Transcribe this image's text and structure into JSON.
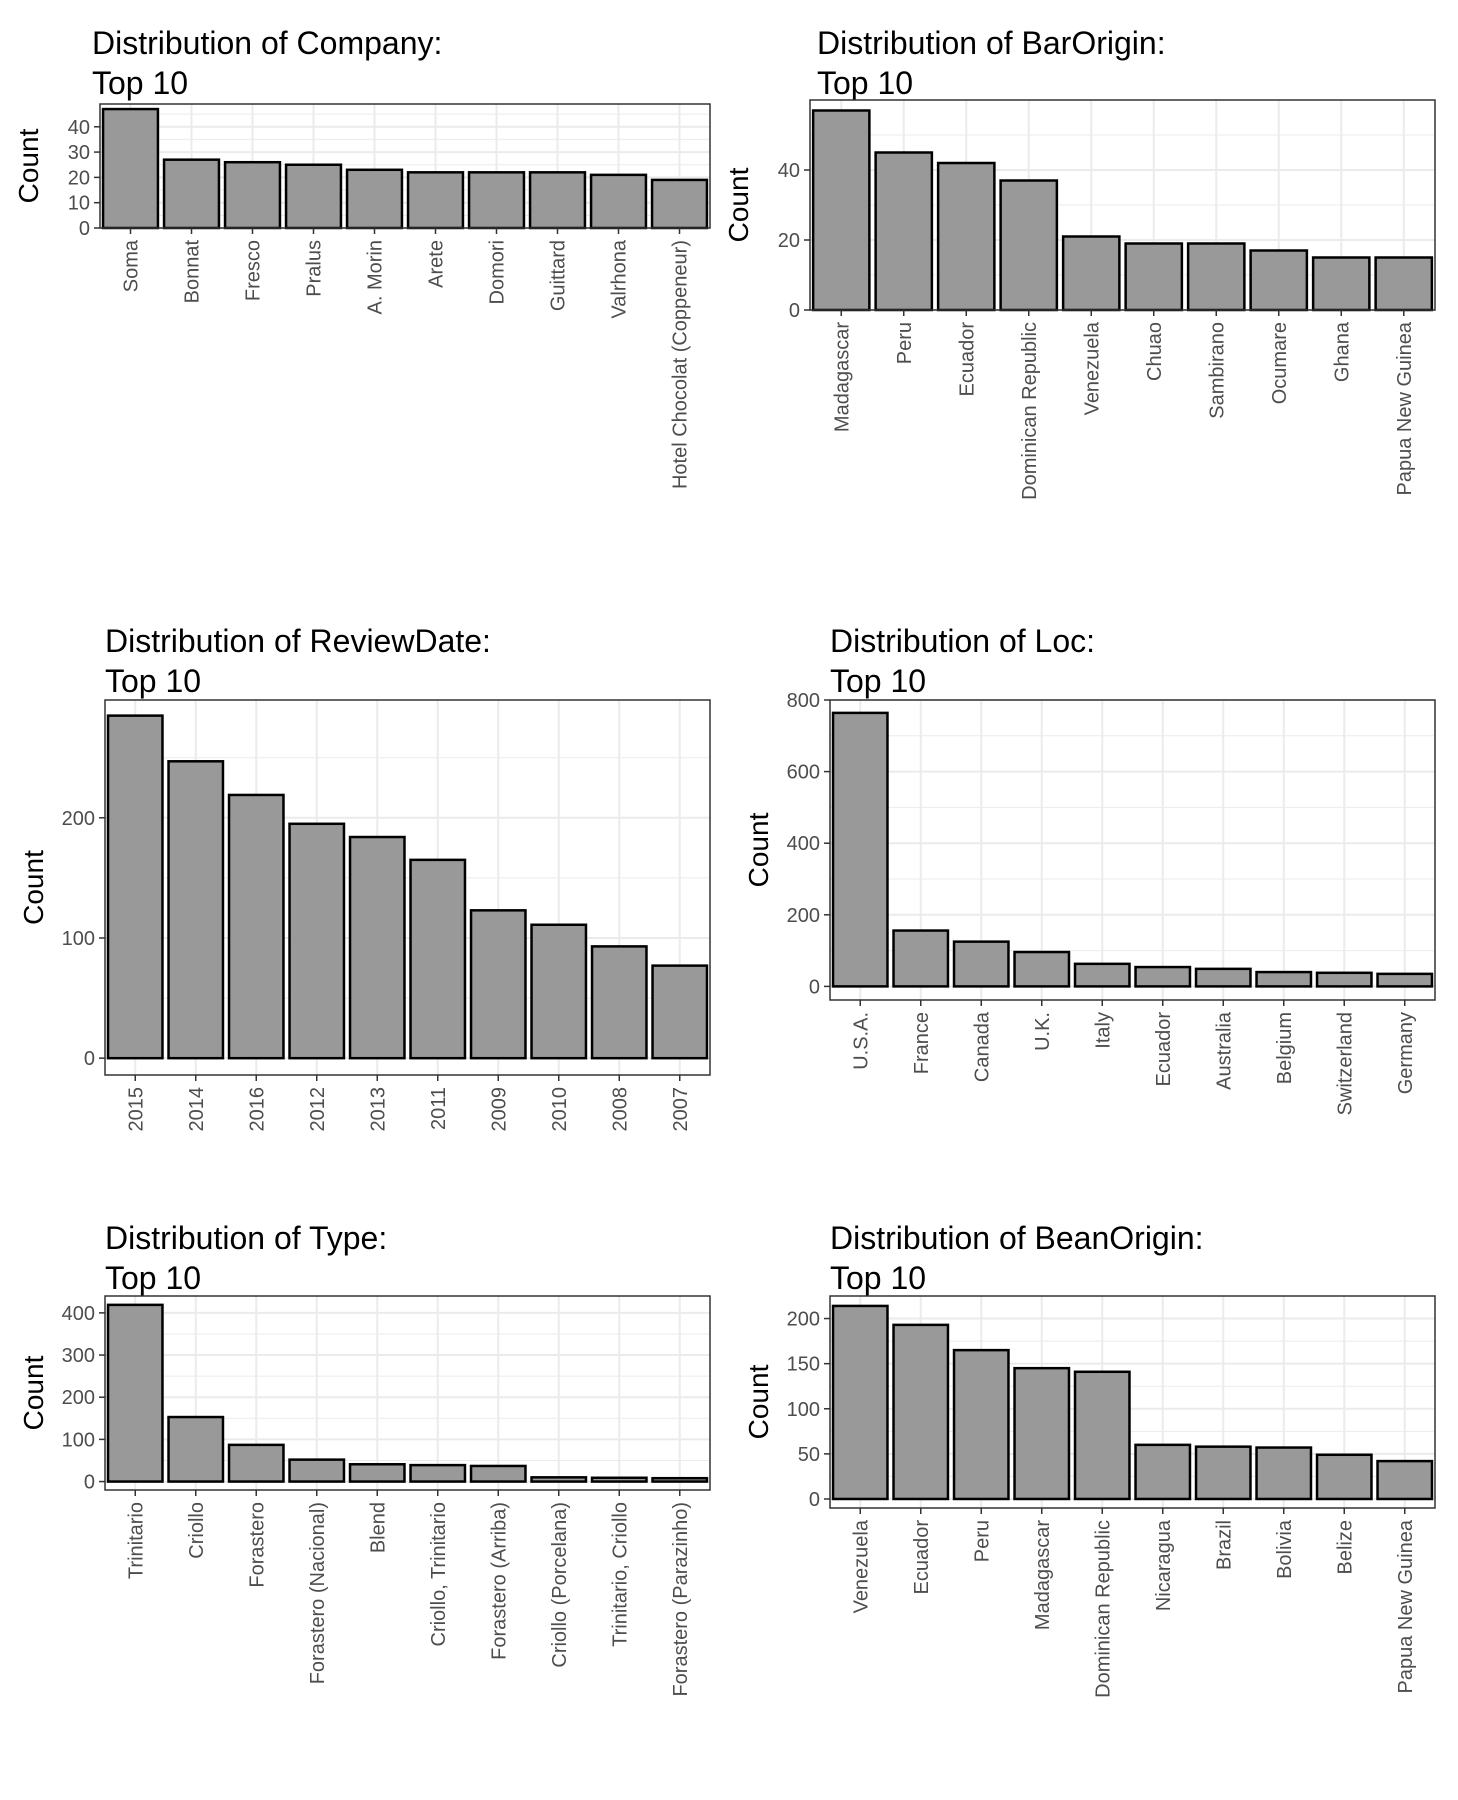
{
  "chart_data": [
    {
      "type": "bar",
      "title_lines": [
        "Distribution of Company:",
        "Top 10"
      ],
      "ylabel": "Count",
      "categories": [
        "Soma",
        "Bonnat",
        "Fresco",
        "Pralus",
        "A. Morin",
        "Arete",
        "Domori",
        "Guittard",
        "Valrhona",
        "Hotel Chocolat (Coppeneur)"
      ],
      "values": [
        47,
        27,
        26,
        25,
        23,
        22,
        22,
        22,
        21,
        19
      ],
      "ylim": [
        0,
        49
      ],
      "yticks": [
        0,
        10,
        20,
        30,
        40
      ],
      "grid": true,
      "bar_fill": "#999999",
      "bar_stroke": "#000000"
    },
    {
      "type": "bar",
      "title_lines": [
        "Distribution of BarOrigin:",
        "Top 10"
      ],
      "ylabel": "Count",
      "categories": [
        "Madagascar",
        "Peru",
        "Ecuador",
        "Dominican Republic",
        "Venezuela",
        "Chuao",
        "Sambirano",
        "Ocumare",
        "Ghana",
        "Papua New Guinea"
      ],
      "values": [
        57,
        45,
        42,
        37,
        21,
        19,
        19,
        17,
        15,
        15
      ],
      "ylim": [
        0,
        60
      ],
      "yticks": [
        0,
        20,
        40
      ],
      "grid": true,
      "bar_fill": "#999999",
      "bar_stroke": "#000000"
    },
    {
      "type": "bar",
      "title_lines": [
        "Distribution of ReviewDate:",
        "Top 10"
      ],
      "ylabel": "Count",
      "categories": [
        "2015",
        "2014",
        "2016",
        "2012",
        "2013",
        "2011",
        "2009",
        "2010",
        "2008",
        "2007"
      ],
      "values": [
        285,
        247,
        219,
        195,
        184,
        165,
        123,
        111,
        93,
        77
      ],
      "ylim": [
        -14,
        298
      ],
      "yticks": [
        0,
        100,
        200
      ],
      "grid": true,
      "bar_fill": "#999999",
      "bar_stroke": "#000000"
    },
    {
      "type": "bar",
      "title_lines": [
        "Distribution of Loc:",
        "Top 10"
      ],
      "ylabel": "Count",
      "categories": [
        "U.S.A.",
        "France",
        "Canada",
        "U.K.",
        "Italy",
        "Ecuador",
        "Australia",
        "Belgium",
        "Switzerland",
        "Germany"
      ],
      "values": [
        764,
        156,
        125,
        96,
        63,
        54,
        49,
        40,
        38,
        35
      ],
      "ylim": [
        -38,
        800
      ],
      "yticks": [
        0,
        200,
        400,
        600,
        800
      ],
      "grid": true,
      "bar_fill": "#999999",
      "bar_stroke": "#000000"
    },
    {
      "type": "bar",
      "title_lines": [
        "Distribution of Type:",
        "Top 10"
      ],
      "ylabel": "Count",
      "categories": [
        "Trinitario",
        "Criollo",
        "Forastero",
        "Forastero (Nacional)",
        "Blend",
        "Criollo, Trinitario",
        "Forastero (Arriba)",
        "Criollo (Porcelana)",
        "Trinitario, Criollo",
        "Forastero (Parazinho)"
      ],
      "values": [
        419,
        153,
        87,
        52,
        41,
        39,
        37,
        10,
        9,
        8
      ],
      "ylim": [
        -20,
        440
      ],
      "yticks": [
        0,
        100,
        200,
        300,
        400
      ],
      "grid": true,
      "bar_fill": "#999999",
      "bar_stroke": "#000000"
    },
    {
      "type": "bar",
      "title_lines": [
        "Distribution of BeanOrigin:",
        "Top 10"
      ],
      "ylabel": "Count",
      "categories": [
        "Venezuela",
        "Ecuador",
        "Peru",
        "Madagascar",
        "Dominican Republic",
        "Nicaragua",
        "Brazil",
        "Bolivia",
        "Belize",
        "Papua New Guinea"
      ],
      "values": [
        214,
        193,
        165,
        145,
        141,
        60,
        58,
        57,
        49,
        42
      ],
      "ylim": [
        -10,
        225
      ],
      "yticks": [
        0,
        50,
        100,
        150,
        200
      ],
      "grid": true,
      "bar_fill": "#999999",
      "bar_stroke": "#000000"
    }
  ]
}
